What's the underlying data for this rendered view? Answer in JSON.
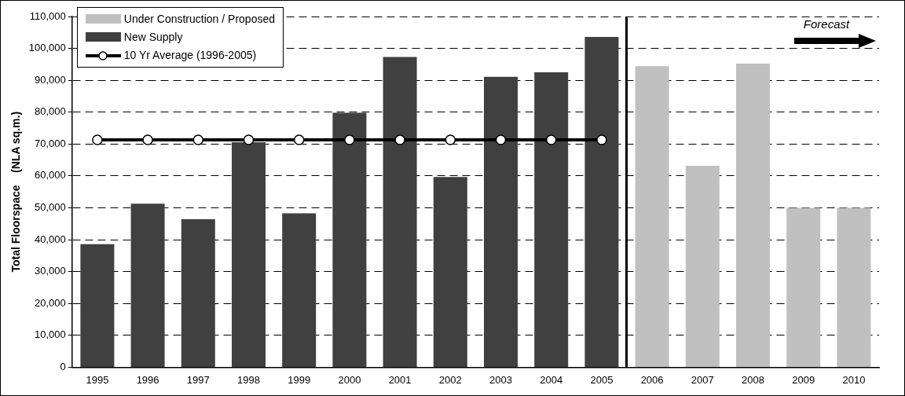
{
  "chart_data": {
    "type": "bar",
    "ylabel": "Total Floorspace    (NLA sq.m.)",
    "categories": [
      "1995",
      "1996",
      "1997",
      "1998",
      "1999",
      "2000",
      "2001",
      "2002",
      "2003",
      "2004",
      "2005",
      "2006",
      "2007",
      "2008",
      "2009",
      "2010"
    ],
    "series": [
      {
        "name": "Under Construction / Proposed",
        "color": "#c0c0c0",
        "values": [
          null,
          null,
          null,
          null,
          null,
          null,
          null,
          null,
          null,
          null,
          null,
          94400,
          63200,
          95200,
          50000,
          50000
        ]
      },
      {
        "name": "New Supply",
        "color": "#404040",
        "values": [
          38600,
          51300,
          46400,
          70600,
          48300,
          79800,
          97300,
          59700,
          91100,
          92500,
          103600,
          null,
          null,
          null,
          null,
          null
        ]
      },
      {
        "name": "10 Yr Average (1996-2005)",
        "type": "line",
        "color": "#000000",
        "marker": "circle",
        "values": [
          71300,
          71300,
          71300,
          71300,
          71300,
          71300,
          71300,
          71300,
          71300,
          71300,
          71300,
          null,
          null,
          null,
          null,
          null
        ]
      }
    ],
    "ylim": [
      0,
      110000
    ],
    "yticks": [
      0,
      {
        "value": 10000,
        "label": "10,000"
      },
      {
        "value": 20000,
        "label": "20,000"
      },
      {
        "value": 30000,
        "label": "30,000"
      },
      {
        "value": 40000,
        "label": "40,000"
      },
      {
        "value": 50000,
        "label": "50,000"
      },
      {
        "value": 60000,
        "label": "60,000"
      },
      {
        "value": 70000,
        "label": "70,000"
      },
      {
        "value": 80000,
        "label": "80,000"
      },
      {
        "value": 90000,
        "label": "90,000"
      },
      {
        "value": 100000,
        "label": "100,000"
      },
      {
        "value": 110000,
        "label": "110,000"
      }
    ],
    "grid": "y",
    "legend": "top left",
    "annotations": [
      "Forecast"
    ]
  }
}
